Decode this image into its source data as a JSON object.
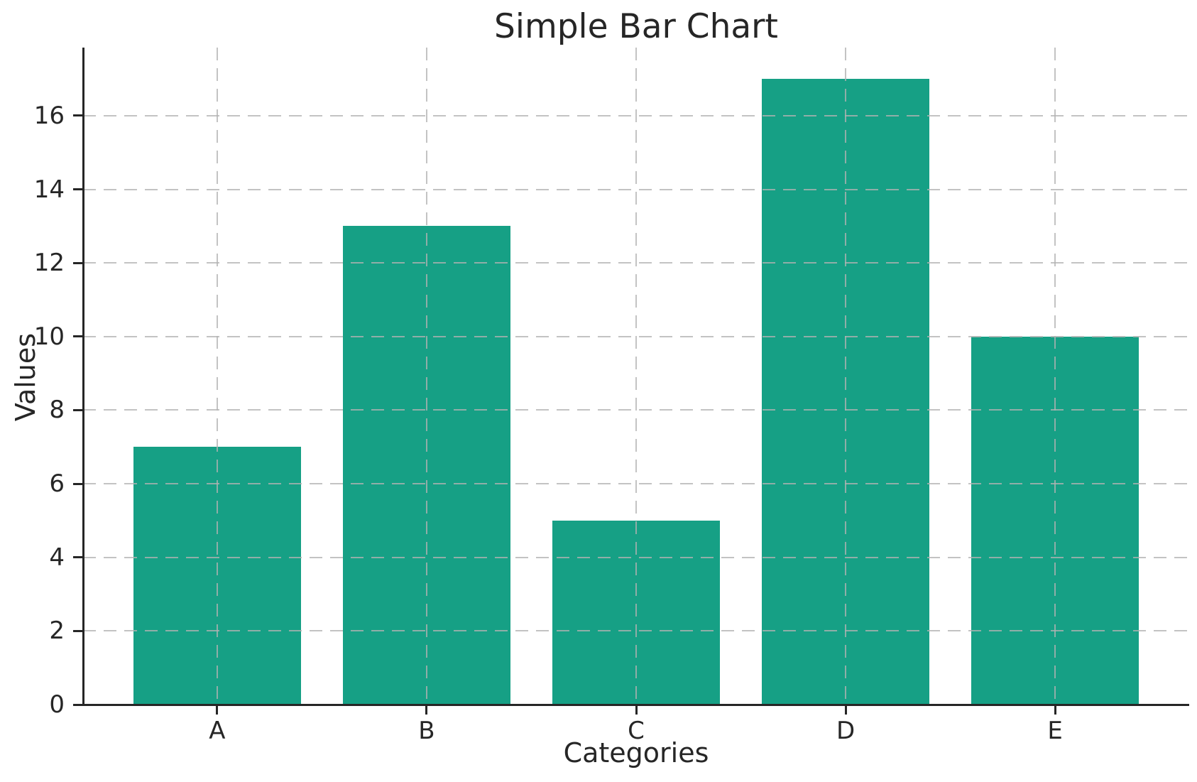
{
  "chart_data": {
    "type": "bar",
    "title": "Simple Bar Chart",
    "xlabel": "Categories",
    "ylabel": "Values",
    "categories": [
      "A",
      "B",
      "C",
      "D",
      "E"
    ],
    "values": [
      7,
      13,
      5,
      17,
      10
    ],
    "yticks": [
      0,
      2,
      4,
      6,
      8,
      10,
      12,
      14,
      16
    ],
    "ylim": [
      0,
      17.85
    ],
    "xlim": [
      -0.64,
      4.64
    ],
    "bar_width_units": 0.8,
    "bar_color": "#16a085",
    "grid": true,
    "grid_linestyle": "dashed",
    "grid_color": "#c4c4c4",
    "grid_on_top": true,
    "axis_color": "#262626",
    "text_color": "#262626",
    "background": "#ffffff",
    "legend_position": "none"
  }
}
